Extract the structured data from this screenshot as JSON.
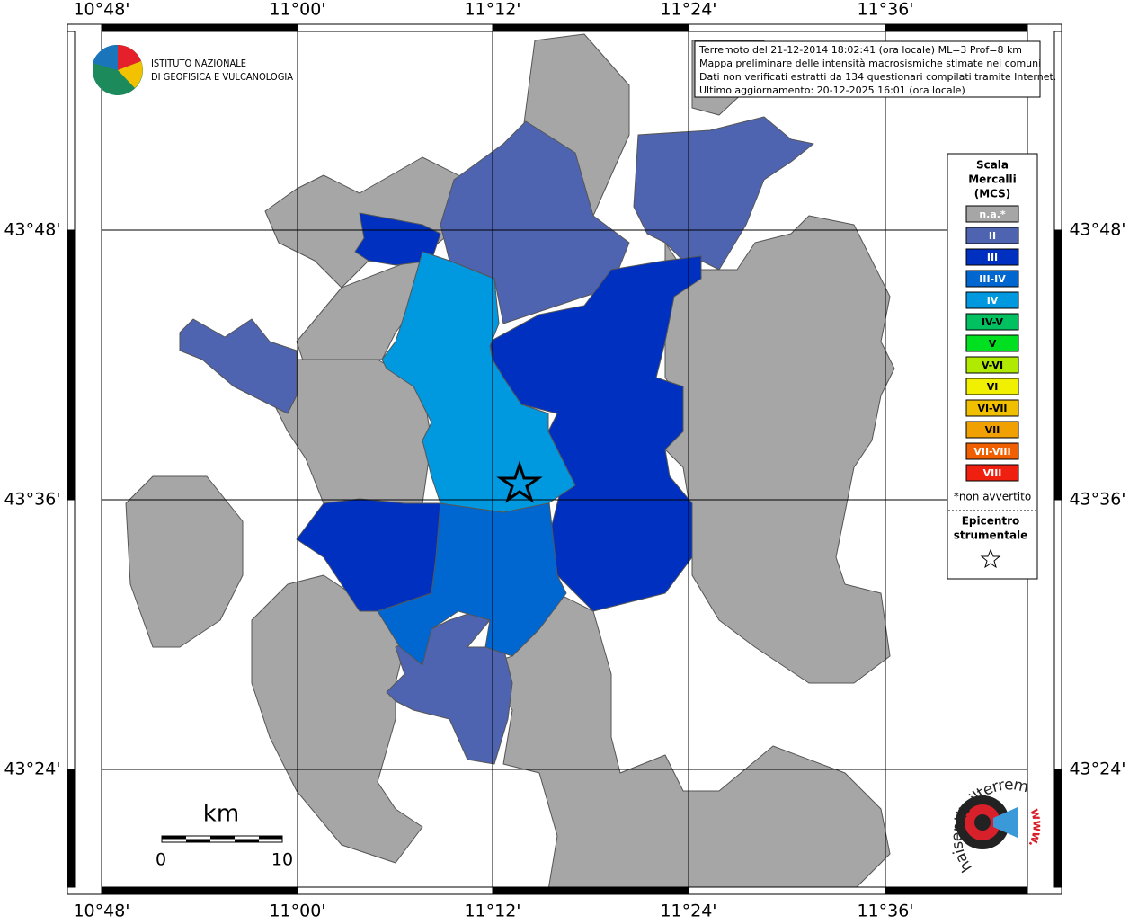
{
  "map": {
    "lon_labels": [
      "10°48'",
      "11°00'",
      "11°12'",
      "11°24'",
      "11°36'"
    ],
    "lat_labels": [
      "43°48'",
      "43°36'",
      "43°24'"
    ]
  },
  "institute": {
    "line1": "ISTITUTO NAZIONALE",
    "line2": "DI GEOFISICA E VULCANOLOGIA"
  },
  "info": {
    "lines": [
      "Terremoto del 21-12-2014 18:02:41 (ora locale) ML=3 Prof=8 km",
      "Mappa preliminare delle intensità macrosismiche stimate nei comuni",
      "Dati non verificati estratti da 134 questionari compilati tramite Internet.",
      "Ultimo aggiornamento: 20-12-2025 16:01 (ora locale)"
    ]
  },
  "legend": {
    "title": [
      "Scala",
      "Mercalli",
      "(MCS)"
    ],
    "items": [
      {
        "label": "n.a.*",
        "color": "#a6a6a6"
      },
      {
        "label": "II",
        "color": "#4f64b0"
      },
      {
        "label": "III",
        "color": "#0030c0"
      },
      {
        "label": "III-IV",
        "color": "#0066d0"
      },
      {
        "label": "IV",
        "color": "#0099e0"
      },
      {
        "label": "IV-V",
        "color": "#00c060"
      },
      {
        "label": "V",
        "color": "#00e020"
      },
      {
        "label": "V-VI",
        "color": "#b0ea00"
      },
      {
        "label": "VI",
        "color": "#f0f000"
      },
      {
        "label": "VI-VII",
        "color": "#f0c000"
      },
      {
        "label": "VII",
        "color": "#f0a000"
      },
      {
        "label": "VII-VIII",
        "color": "#f06000"
      },
      {
        "label": "VIII",
        "color": "#f02010"
      }
    ],
    "note": "*non avvertito",
    "epicenter": [
      "Epicentro",
      "strumentale"
    ]
  },
  "scale_bar": {
    "unit": "km",
    "start": "0",
    "end": "10"
  },
  "logo": {
    "text": "haisentitoilterremoto.it",
    "prefix": "www."
  }
}
